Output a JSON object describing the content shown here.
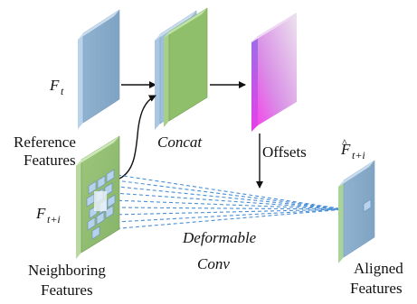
{
  "labels": {
    "ft_symbol": "F",
    "ft_sub": "t",
    "reference_line1": "Reference",
    "reference_line2": "Features",
    "concat": "Concat",
    "offsets": "Offsets",
    "ftpi_symbol": "F",
    "ftpi_sub": "t+i",
    "neighboring_line1": "Neighboring",
    "neighboring_line2": "Features",
    "deformable_line1": "Deformable",
    "deformable_line2": "Conv",
    "fhat_symbol": "F",
    "fhat_hat": "^",
    "fhat_sub": "t+i",
    "aligned_line1": "Aligned",
    "aligned_line2": "Features"
  },
  "colors": {
    "reference_block": "#9dbfdc",
    "neighboring_block": "#9cc27a",
    "concat_front": "#8fbf6a",
    "offset_magenta": "#e040e8",
    "dashed_lines": "#4a8fd6",
    "arrows": "#111111"
  }
}
